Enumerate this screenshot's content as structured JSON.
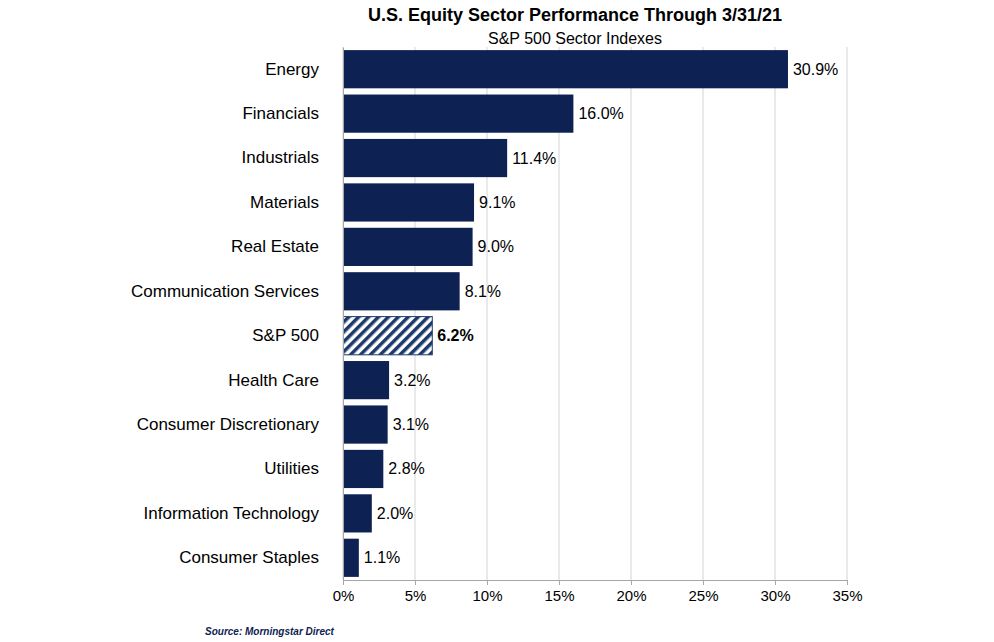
{
  "chart_data": {
    "type": "bar",
    "title": "U.S. Equity Sector Performance Through 3/31/21",
    "subtitle": "S&P 500 Sector Indexes",
    "source": "Source: Morningstar Direct",
    "orientation": "horizontal",
    "categories": [
      "Energy",
      "Financials",
      "Industrials",
      "Materials",
      "Real Estate",
      "Communication Services",
      "S&P 500",
      "Health Care",
      "Consumer Discretionary",
      "Utilities",
      "Information Technology",
      "Consumer Staples"
    ],
    "values": [
      30.9,
      16.0,
      11.4,
      9.1,
      9.0,
      8.1,
      6.2,
      3.2,
      3.1,
      2.8,
      2.0,
      1.1
    ],
    "value_labels": [
      "30.9%",
      "16.0%",
      "11.4%",
      "9.1%",
      "9.0%",
      "8.1%",
      "6.2%",
      "3.2%",
      "3.1%",
      "2.8%",
      "2.0%",
      "1.1%"
    ],
    "data_labels": true,
    "color": "#0d2252",
    "colors": [
      "#0d2252",
      "#0d2252",
      "#0d2252",
      "#0d2252",
      "#0d2252",
      "#0d2252",
      "#1b3a6b",
      "#0d2252",
      "#0d2252",
      "#0d2252",
      "#0d2252",
      "#0d2252"
    ],
    "xlim": [
      0,
      35
    ],
    "xticks": [
      {
        "value": 0,
        "label": "0%"
      },
      {
        "value": 5,
        "label": "5%"
      },
      {
        "value": 10,
        "label": "10%"
      },
      {
        "value": 15,
        "label": "15%"
      },
      {
        "value": 20,
        "label": "20%"
      },
      {
        "value": 25,
        "label": "25%"
      },
      {
        "value": 30,
        "label": "30%"
      },
      {
        "value": 35,
        "label": "35%"
      }
    ],
    "grid": true
  }
}
